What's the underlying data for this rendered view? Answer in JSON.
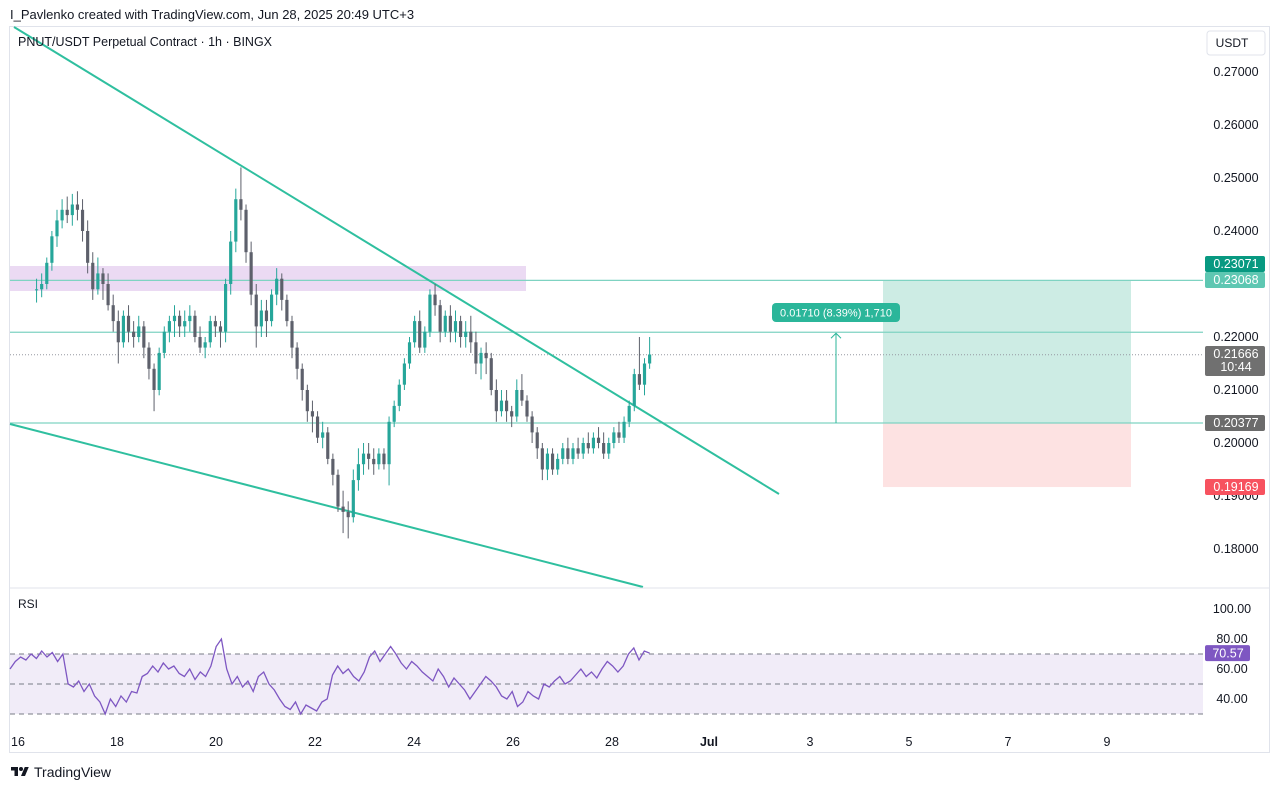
{
  "header": {
    "attribution": "I_Pavlenko created with TradingView.com, Jun 28, 2025 20:49 UTC+3",
    "symbol": "PNUT/USDT Perpetual Contract · 1h · BINGX",
    "currency_button": "USDT"
  },
  "brand": {
    "label": "TradingView",
    "icon": "tradingview-logo-icon"
  },
  "price_scale": [
    "0.27000",
    "0.26000",
    "0.25000",
    "0.24000",
    "0.22000",
    "0.21000",
    "0.20000",
    "0.19000",
    "0.18000"
  ],
  "price_tags": {
    "target": {
      "value": "0.23071",
      "color": "#089981"
    },
    "resistance": {
      "value": "0.23068",
      "color": "#5ec7b2"
    },
    "last": {
      "value": "0.21666",
      "countdown": "10:44",
      "color": "#707070"
    },
    "entry": {
      "value": "0.20377",
      "color": "#6b6b6b"
    },
    "stop": {
      "value": "0.19169",
      "color": "#f7525f"
    }
  },
  "measure": {
    "label": "0.01710 (8.39%) 1,710",
    "color": "#2bb69a"
  },
  "rsi": {
    "title": "RSI",
    "scale": [
      "100.00",
      "80.00",
      "60.00",
      "40.00"
    ],
    "value": "70.57",
    "color": "#7e57c2",
    "upper_band": 70,
    "mid_band": 50,
    "lower_band": 30
  },
  "time_axis": [
    "16",
    "18",
    "20",
    "22",
    "24",
    "26",
    "28",
    "Jul",
    "3",
    "5",
    "7",
    "9"
  ],
  "colors": {
    "up": "#26a69a",
    "down": "#5d606b",
    "trendline": "#2fbf9f",
    "supply_zone": "#e7d3f1",
    "profit_zone": "#cdece4",
    "loss_zone": "#fde2e2"
  },
  "chart_data": {
    "type": "candlestick",
    "timeframe": "1h",
    "x_range": [
      "Jun 16",
      "Jul 10"
    ],
    "y_range": [
      0.174,
      0.282
    ],
    "series": [
      {
        "values": [
          [
            0.229,
            0.231,
            0.2265,
            0.229
          ],
          [
            0.229,
            0.232,
            0.2275,
            0.23
          ],
          [
            0.23,
            0.235,
            0.229,
            0.234
          ],
          [
            0.234,
            0.24,
            0.2325,
            0.239
          ],
          [
            0.239,
            0.244,
            0.237,
            0.242
          ],
          [
            0.242,
            0.246,
            0.2405,
            0.244
          ],
          [
            0.244,
            0.2465,
            0.2415,
            0.243
          ],
          [
            0.243,
            0.247,
            0.241,
            0.245
          ],
          [
            0.245,
            0.2475,
            0.242,
            0.244
          ],
          [
            0.244,
            0.246,
            0.238,
            0.24
          ],
          [
            0.24,
            0.242,
            0.232,
            0.234
          ],
          [
            0.234,
            0.236,
            0.227,
            0.229
          ],
          [
            0.229,
            0.235,
            0.228,
            0.232
          ],
          [
            0.232,
            0.233,
            0.227,
            0.23
          ],
          [
            0.23,
            0.232,
            0.225,
            0.226
          ],
          [
            0.226,
            0.228,
            0.221,
            0.223
          ],
          [
            0.223,
            0.225,
            0.215,
            0.219
          ],
          [
            0.219,
            0.225,
            0.218,
            0.224
          ],
          [
            0.224,
            0.226,
            0.219,
            0.221
          ],
          [
            0.221,
            0.223,
            0.218,
            0.22
          ],
          [
            0.22,
            0.224,
            0.219,
            0.222
          ],
          [
            0.222,
            0.223,
            0.216,
            0.218
          ],
          [
            0.218,
            0.219,
            0.212,
            0.214
          ],
          [
            0.214,
            0.215,
            0.206,
            0.21
          ],
          [
            0.21,
            0.218,
            0.209,
            0.217
          ],
          [
            0.217,
            0.222,
            0.216,
            0.221
          ],
          [
            0.221,
            0.224,
            0.219,
            0.223
          ],
          [
            0.223,
            0.226,
            0.22,
            0.224
          ],
          [
            0.224,
            0.225,
            0.22,
            0.222
          ],
          [
            0.222,
            0.225,
            0.22,
            0.223
          ],
          [
            0.223,
            0.226,
            0.221,
            0.224
          ],
          [
            0.224,
            0.225,
            0.219,
            0.22
          ],
          [
            0.22,
            0.222,
            0.217,
            0.218
          ],
          [
            0.218,
            0.22,
            0.216,
            0.219
          ],
          [
            0.219,
            0.224,
            0.218,
            0.223
          ],
          [
            0.223,
            0.224,
            0.22,
            0.222
          ],
          [
            0.222,
            0.223,
            0.218,
            0.221
          ],
          [
            0.221,
            0.231,
            0.219,
            0.23
          ],
          [
            0.23,
            0.24,
            0.228,
            0.238
          ],
          [
            0.238,
            0.248,
            0.236,
            0.246
          ],
          [
            0.246,
            0.252,
            0.242,
            0.244
          ],
          [
            0.244,
            0.245,
            0.234,
            0.236
          ],
          [
            0.236,
            0.238,
            0.226,
            0.228
          ],
          [
            0.228,
            0.23,
            0.218,
            0.222
          ],
          [
            0.222,
            0.227,
            0.22,
            0.225
          ],
          [
            0.225,
            0.227,
            0.22,
            0.223
          ],
          [
            0.223,
            0.229,
            0.222,
            0.228
          ],
          [
            0.228,
            0.233,
            0.226,
            0.231
          ],
          [
            0.231,
            0.232,
            0.225,
            0.227
          ],
          [
            0.227,
            0.228,
            0.222,
            0.223
          ],
          [
            0.223,
            0.224,
            0.216,
            0.218
          ],
          [
            0.218,
            0.219,
            0.212,
            0.214
          ],
          [
            0.214,
            0.215,
            0.208,
            0.21
          ],
          [
            0.21,
            0.211,
            0.204,
            0.206
          ],
          [
            0.206,
            0.208,
            0.202,
            0.205
          ],
          [
            0.205,
            0.206,
            0.2,
            0.201
          ],
          [
            0.201,
            0.204,
            0.199,
            0.202
          ],
          [
            0.202,
            0.203,
            0.196,
            0.197
          ],
          [
            0.197,
            0.198,
            0.192,
            0.194
          ],
          [
            0.194,
            0.195,
            0.187,
            0.188
          ],
          [
            0.188,
            0.191,
            0.183,
            0.187
          ],
          [
            0.187,
            0.189,
            0.182,
            0.186
          ],
          [
            0.186,
            0.195,
            0.185,
            0.193
          ],
          [
            0.193,
            0.199,
            0.191,
            0.196
          ],
          [
            0.196,
            0.2,
            0.194,
            0.198
          ],
          [
            0.198,
            0.2,
            0.195,
            0.197
          ],
          [
            0.197,
            0.199,
            0.194,
            0.196
          ],
          [
            0.196,
            0.199,
            0.195,
            0.198
          ],
          [
            0.198,
            0.199,
            0.195,
            0.196
          ],
          [
            0.196,
            0.205,
            0.192,
            0.204
          ],
          [
            0.204,
            0.208,
            0.203,
            0.207
          ],
          [
            0.207,
            0.212,
            0.206,
            0.211
          ],
          [
            0.211,
            0.216,
            0.21,
            0.215
          ],
          [
            0.215,
            0.22,
            0.214,
            0.219
          ],
          [
            0.219,
            0.224,
            0.218,
            0.223
          ],
          [
            0.223,
            0.225,
            0.217,
            0.218
          ],
          [
            0.218,
            0.222,
            0.217,
            0.221
          ],
          [
            0.221,
            0.229,
            0.22,
            0.228
          ],
          [
            0.228,
            0.23,
            0.224,
            0.226
          ],
          [
            0.226,
            0.227,
            0.219,
            0.221
          ],
          [
            0.221,
            0.225,
            0.22,
            0.224
          ],
          [
            0.224,
            0.226,
            0.219,
            0.221
          ],
          [
            0.221,
            0.225,
            0.219,
            0.223
          ],
          [
            0.223,
            0.224,
            0.218,
            0.22
          ],
          [
            0.22,
            0.223,
            0.218,
            0.221
          ],
          [
            0.221,
            0.224,
            0.217,
            0.219
          ],
          [
            0.219,
            0.221,
            0.213,
            0.215
          ],
          [
            0.215,
            0.218,
            0.212,
            0.217
          ],
          [
            0.217,
            0.219,
            0.213,
            0.216
          ],
          [
            0.216,
            0.217,
            0.209,
            0.21
          ],
          [
            0.21,
            0.212,
            0.204,
            0.206
          ],
          [
            0.206,
            0.21,
            0.205,
            0.208
          ],
          [
            0.208,
            0.21,
            0.204,
            0.206
          ],
          [
            0.206,
            0.207,
            0.203,
            0.205
          ],
          [
            0.205,
            0.212,
            0.204,
            0.21
          ],
          [
            0.21,
            0.213,
            0.207,
            0.208
          ],
          [
            0.208,
            0.209,
            0.204,
            0.205
          ],
          [
            0.205,
            0.206,
            0.2,
            0.202
          ],
          [
            0.202,
            0.203,
            0.197,
            0.199
          ],
          [
            0.199,
            0.2,
            0.193,
            0.195
          ],
          [
            0.195,
            0.199,
            0.193,
            0.198
          ],
          [
            0.198,
            0.199,
            0.194,
            0.195
          ],
          [
            0.195,
            0.198,
            0.194,
            0.197
          ],
          [
            0.197,
            0.2,
            0.196,
            0.199
          ],
          [
            0.199,
            0.201,
            0.196,
            0.197
          ],
          [
            0.197,
            0.2,
            0.196,
            0.199
          ],
          [
            0.199,
            0.201,
            0.197,
            0.198
          ],
          [
            0.198,
            0.201,
            0.197,
            0.2
          ],
          [
            0.2,
            0.202,
            0.198,
            0.199
          ],
          [
            0.199,
            0.202,
            0.198,
            0.201
          ],
          [
            0.201,
            0.203,
            0.199,
            0.2
          ],
          [
            0.2,
            0.202,
            0.197,
            0.198
          ],
          [
            0.198,
            0.201,
            0.197,
            0.2
          ],
          [
            0.2,
            0.203,
            0.199,
            0.202
          ],
          [
            0.202,
            0.204,
            0.2,
            0.201
          ],
          [
            0.201,
            0.205,
            0.2,
            0.204
          ],
          [
            0.204,
            0.208,
            0.203,
            0.207
          ],
          [
            0.207,
            0.214,
            0.206,
            0.213
          ],
          [
            0.213,
            0.22,
            0.21,
            0.211
          ],
          [
            0.211,
            0.216,
            0.209,
            0.215
          ],
          [
            0.215,
            0.22,
            0.214,
            0.2167
          ]
        ]
      }
    ],
    "levels": {
      "resistance": 0.23068,
      "target": 0.23071,
      "entry": 0.20377,
      "stop": 0.19169,
      "last": 0.21666,
      "measured_top": 0.2209
    },
    "rsi_values": [
      60,
      65,
      68,
      66,
      70,
      67,
      72,
      68,
      71,
      65,
      70,
      50,
      48,
      52,
      45,
      50,
      42,
      38,
      30,
      40,
      35,
      42,
      38,
      45,
      44,
      55,
      57,
      62,
      58,
      64,
      60,
      62,
      57,
      55,
      60,
      53,
      58,
      55,
      62,
      75,
      80,
      60,
      50,
      55,
      48,
      52,
      45,
      55,
      58,
      50,
      46,
      40,
      35,
      33,
      38,
      30,
      36,
      34,
      32,
      38,
      40,
      56,
      62,
      57,
      60,
      55,
      52,
      58,
      68,
      72,
      65,
      70,
      75,
      70,
      64,
      60,
      65,
      62,
      58,
      55,
      52,
      60,
      55,
      48,
      54,
      50,
      46,
      40,
      45,
      50,
      55,
      52,
      48,
      42,
      40,
      45,
      35,
      38,
      45,
      42,
      40,
      50,
      48,
      52,
      55,
      50,
      52,
      56,
      60,
      55,
      58,
      54,
      60,
      65,
      62,
      58,
      62,
      70,
      74,
      66,
      72,
      70.57
    ],
    "rsi_range": [
      20,
      100
    ]
  }
}
